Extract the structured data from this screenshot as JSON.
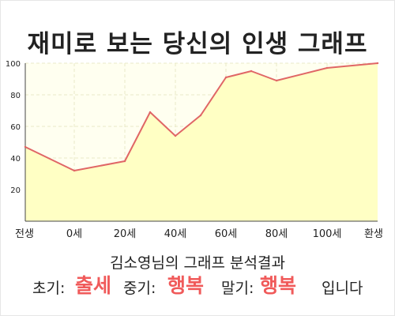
{
  "title": "재미로 보는 당신의 인생 그래프",
  "subtitle": "김소영님의 그래프 분석결과",
  "result": {
    "early_label": "초기:",
    "early_value": "출세",
    "mid_label": "중기:",
    "mid_value": "행복",
    "late_label": "말기:",
    "late_value": "행복",
    "ending": "입니다"
  },
  "colors": {
    "line": "#e06666",
    "fill": "#ffffc4",
    "plot_bg": "#fffff0",
    "highlight": "#f05a5a"
  },
  "chart_data": {
    "type": "area",
    "x_categories": [
      "전생",
      "0세",
      "20세",
      "40세",
      "60세",
      "80세",
      "100세",
      "환생"
    ],
    "points": [
      {
        "x": "전생",
        "y": 47
      },
      {
        "x": "0세",
        "y": 32
      },
      {
        "x": "20세",
        "y": 38
      },
      {
        "x": "30세",
        "y": 69
      },
      {
        "x": "40세",
        "y": 54
      },
      {
        "x": "50세",
        "y": 67
      },
      {
        "x": "60세",
        "y": 91
      },
      {
        "x": "70세",
        "y": 95
      },
      {
        "x": "80세",
        "y": 89
      },
      {
        "x": "100세",
        "y": 97
      },
      {
        "x": "환생",
        "y": 100
      }
    ],
    "y_ticks": [
      20,
      40,
      60,
      80,
      100
    ],
    "ylim": [
      0,
      100
    ],
    "grid": true,
    "legend": "none"
  }
}
